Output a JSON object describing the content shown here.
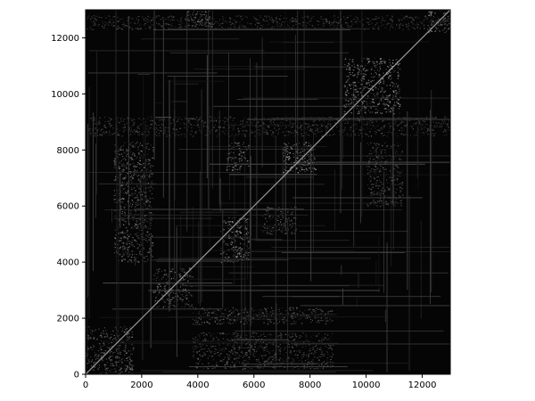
{
  "chart_data": {
    "type": "heatmap",
    "title": "",
    "xlabel": "",
    "ylabel": "",
    "xlim": [
      0,
      13000
    ],
    "ylim": [
      0,
      13000
    ],
    "x_ticks": [
      {
        "value": 0,
        "label": "0"
      },
      {
        "value": 2000,
        "label": "2000"
      },
      {
        "value": 4000,
        "label": "4000"
      },
      {
        "value": 6000,
        "label": "6000"
      },
      {
        "value": 8000,
        "label": "8000"
      },
      {
        "value": 10000,
        "label": "10000"
      },
      {
        "value": 12000,
        "label": "12000"
      }
    ],
    "y_ticks": [
      {
        "value": 0,
        "label": "0"
      },
      {
        "value": 2000,
        "label": "2000"
      },
      {
        "value": 4000,
        "label": "4000"
      },
      {
        "value": 6000,
        "label": "6000"
      },
      {
        "value": 8000,
        "label": "8000"
      },
      {
        "value": 10000,
        "label": "10000"
      },
      {
        "value": 12000,
        "label": "12000"
      }
    ],
    "grid": false,
    "colormap": "gray",
    "background_color": "#050505",
    "symmetric": true,
    "diagonal": "bright line from (0,0) to (13000,13000)",
    "blocks": [
      {
        "x": [
          0,
          1700
        ],
        "y": [
          0,
          1700
        ],
        "intensity": 0.45
      },
      {
        "x": [
          2400,
          3800
        ],
        "y": [
          2400,
          3800
        ],
        "intensity": 0.45
      },
      {
        "x": [
          3600,
          4500
        ],
        "y": [
          12400,
          13000
        ],
        "intensity": 0.5
      },
      {
        "x": [
          4800,
          5800
        ],
        "y": [
          4000,
          5600
        ],
        "intensity": 0.6
      },
      {
        "x": [
          5000,
          5800
        ],
        "y": [
          7300,
          8300
        ],
        "intensity": 0.5
      },
      {
        "x": [
          7000,
          8200
        ],
        "y": [
          7200,
          8300
        ],
        "intensity": 0.65
      },
      {
        "x": [
          9200,
          11200
        ],
        "y": [
          9300,
          11300
        ],
        "intensity": 0.6
      },
      {
        "x": [
          12200,
          13000
        ],
        "y": [
          12200,
          13000
        ],
        "intensity": 0.55
      },
      {
        "x": [
          1000,
          2400
        ],
        "y": [
          4000,
          8300
        ],
        "intensity": 0.45
      },
      {
        "x": [
          3800,
          8800
        ],
        "y": [
          1800,
          2400
        ],
        "intensity": 0.4
      },
      {
        "x": [
          3800,
          8800
        ],
        "y": [
          200,
          1500
        ],
        "intensity": 0.35
      },
      {
        "x": [
          10000,
          11300
        ],
        "y": [
          6000,
          8300
        ],
        "intensity": 0.35
      },
      {
        "x": [
          6300,
          7500
        ],
        "y": [
          5000,
          6000
        ],
        "intensity": 0.4
      },
      {
        "x": [
          0,
          13000
        ],
        "y": [
          8500,
          9200
        ],
        "intensity": 0.3
      },
      {
        "x": [
          0,
          13000
        ],
        "y": [
          12300,
          12800
        ],
        "intensity": 0.3
      }
    ]
  }
}
